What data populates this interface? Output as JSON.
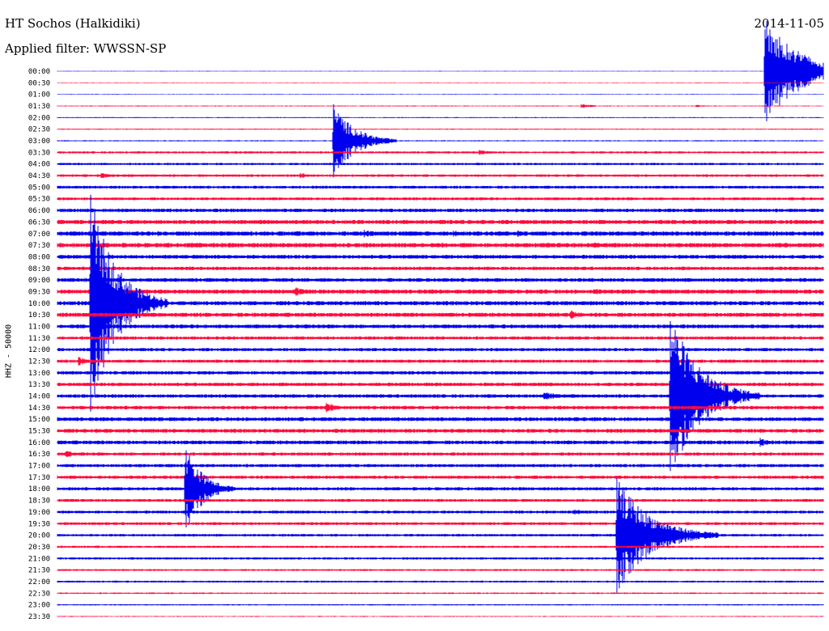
{
  "header": {
    "station": "HT Sochos (Halkidiki)",
    "date": "2014-11-05",
    "filter": "Applied filter: WWSSN-SP",
    "channel_label": "HHZ - 50000"
  },
  "colors": {
    "trace_a": "#0000ee",
    "trace_b": "#ff0a3c"
  },
  "chart_data": {
    "type": "line",
    "title": "HT Sochos (Halkidiki)",
    "subtitle": "Applied filter: WWSSN-SP",
    "ylabel": "HHZ - 50000",
    "row_labels": [
      "00:00",
      "00:30",
      "01:00",
      "01:30",
      "02:00",
      "02:30",
      "03:00",
      "03:30",
      "04:00",
      "04:30",
      "05:00",
      "05:30",
      "06:00",
      "06:30",
      "07:00",
      "07:30",
      "08:00",
      "08:30",
      "09:00",
      "09:30",
      "10:00",
      "10:30",
      "11:00",
      "11:30",
      "12:00",
      "12:30",
      "13:00",
      "13:30",
      "14:00",
      "14:30",
      "15:00",
      "15:30",
      "16:00",
      "16:30",
      "17:00",
      "17:30",
      "18:00",
      "18:30",
      "19:00",
      "19:30",
      "20:00",
      "20:30",
      "21:00",
      "21:30",
      "22:00",
      "22:30",
      "23:00",
      "23:30"
    ],
    "noise_level": [
      0.4,
      0.4,
      0.4,
      0.6,
      0.6,
      0.7,
      0.7,
      1.4,
      1.4,
      1.6,
      1.8,
      1.8,
      2.2,
      2.6,
      2.8,
      2.8,
      2.4,
      2.2,
      2.4,
      2.6,
      2.6,
      2.6,
      2.4,
      2.0,
      2.0,
      2.0,
      2.2,
      2.2,
      2.2,
      2.2,
      2.4,
      2.4,
      2.4,
      2.0,
      2.0,
      2.0,
      2.0,
      1.8,
      1.8,
      1.8,
      1.6,
      1.4,
      1.4,
      1.2,
      1.2,
      0.9,
      0.8,
      0.6
    ],
    "events": [
      {
        "row": 0,
        "minute": 27.7,
        "amplitude": 70,
        "duration_min": 4.0
      },
      {
        "row": 3,
        "minute": 20.5,
        "amplitude": 3,
        "duration_min": 1.5
      },
      {
        "row": 3,
        "minute": 25.0,
        "amplitude": 2,
        "duration_min": 1.0
      },
      {
        "row": 6,
        "minute": 10.8,
        "amplitude": 48,
        "duration_min": 2.5
      },
      {
        "row": 7,
        "minute": 16.5,
        "amplitude": 4,
        "duration_min": 1.5
      },
      {
        "row": 9,
        "minute": 1.7,
        "amplitude": 4,
        "duration_min": 2.0
      },
      {
        "row": 9,
        "minute": 9.5,
        "amplitude": 4,
        "duration_min": 1.0
      },
      {
        "row": 14,
        "minute": 12.0,
        "amplitude": 5,
        "duration_min": 2.0
      },
      {
        "row": 14,
        "minute": 15.5,
        "amplitude": 5,
        "duration_min": 1.0
      },
      {
        "row": 14,
        "minute": 18.0,
        "amplitude": 5,
        "duration_min": 1.0
      },
      {
        "row": 15,
        "minute": 21.0,
        "amplitude": 5,
        "duration_min": 1.5
      },
      {
        "row": 19,
        "minute": 9.3,
        "amplitude": 6,
        "duration_min": 1.5
      },
      {
        "row": 19,
        "minute": 21.0,
        "amplitude": 5,
        "duration_min": 1.5
      },
      {
        "row": 20,
        "minute": 1.3,
        "amplitude": 135,
        "duration_min": 3.0
      },
      {
        "row": 21,
        "minute": 20.1,
        "amplitude": 6,
        "duration_min": 1.5
      },
      {
        "row": 25,
        "minute": 0.8,
        "amplitude": 6,
        "duration_min": 1.5
      },
      {
        "row": 28,
        "minute": 24.0,
        "amplitude": 105,
        "duration_min": 3.5
      },
      {
        "row": 28,
        "minute": 19.0,
        "amplitude": 6,
        "duration_min": 2.0
      },
      {
        "row": 29,
        "minute": 10.5,
        "amplitude": 8,
        "duration_min": 1.2
      },
      {
        "row": 33,
        "minute": 0.3,
        "amplitude": 6,
        "duration_min": 1.0
      },
      {
        "row": 32,
        "minute": 27.5,
        "amplitude": 6,
        "duration_min": 1.2
      },
      {
        "row": 36,
        "minute": 5.0,
        "amplitude": 58,
        "duration_min": 2.0
      },
      {
        "row": 38,
        "minute": 20.2,
        "amplitude": 5,
        "duration_min": 1.2
      },
      {
        "row": 40,
        "minute": 21.9,
        "amplitude": 72,
        "duration_min": 4.0
      }
    ]
  }
}
